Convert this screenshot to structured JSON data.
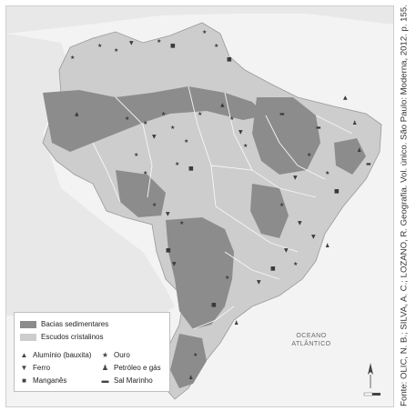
{
  "source": "Fonte: OLIC, N. B.; SILVA, A. C.; LOZANO, R. Geografia. Vol. único. São Paulo: Moderna, 2012. p. 155.",
  "ocean_label": [
    "OCEANO",
    "ATLÂNTICO"
  ],
  "legend": {
    "areas": [
      {
        "label": "Bacias sedimentares",
        "color": "#8c8c8c"
      },
      {
        "label": "Escudos cristalinos",
        "color": "#cdcdcd"
      }
    ],
    "symbols": [
      {
        "icon": "triangle-icon",
        "glyph": "▲",
        "label": "Alumínio (bauxita)"
      },
      {
        "icon": "star-icon",
        "glyph": "★",
        "label": "Ouro"
      },
      {
        "icon": "iron-icon",
        "glyph": "▼",
        "label": "Ferro"
      },
      {
        "icon": "oil-icon",
        "glyph": "♟",
        "label": "Petróleo e gás"
      },
      {
        "icon": "square-icon",
        "glyph": "■",
        "label": "Manganês"
      },
      {
        "icon": "salt-icon",
        "glyph": "▬",
        "label": "Sal Marinho"
      }
    ]
  },
  "colors": {
    "land": "#e6e6e6",
    "sedimentary": "#8c8c8c",
    "crystalline": "#cdcdcd",
    "background": "#f3f3f3"
  }
}
